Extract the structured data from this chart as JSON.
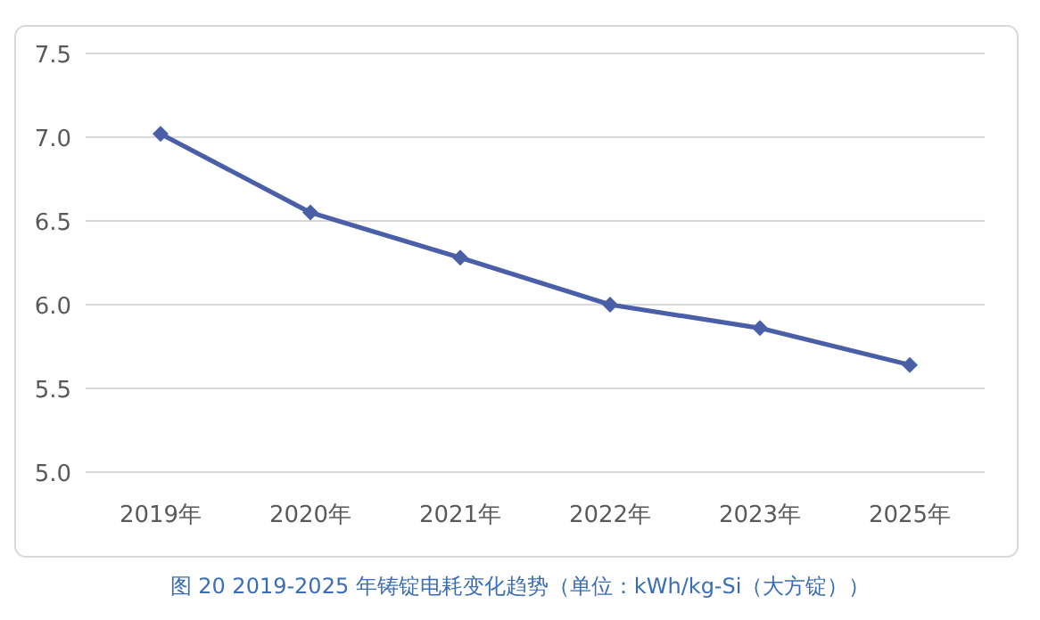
{
  "chart_data": {
    "type": "line",
    "categories": [
      "2019年",
      "2020年",
      "2021年",
      "2022年",
      "2023年",
      "2025年"
    ],
    "series": [
      {
        "color": "#4a5fa8",
        "values": [
          7.02,
          6.55,
          6.28,
          6.0,
          5.86,
          5.64
        ]
      }
    ],
    "ylim": [
      5.0,
      7.5
    ],
    "yticks": [
      {
        "value": 5.0,
        "label": "5.0"
      },
      {
        "value": 5.5,
        "label": "5.5"
      },
      {
        "value": 6.0,
        "label": "6.0"
      },
      {
        "value": 6.5,
        "label": "6.5"
      },
      {
        "value": 7.0,
        "label": "7.0"
      },
      {
        "value": 7.5,
        "label": "7.5"
      }
    ],
    "grid": "y",
    "marker": "diamond",
    "line_style": "solid",
    "annotations": [
      "图 20   2019-2025 年铸锭电耗变化趋势（单位：kWh/kg-Si（大方锭））"
    ]
  }
}
